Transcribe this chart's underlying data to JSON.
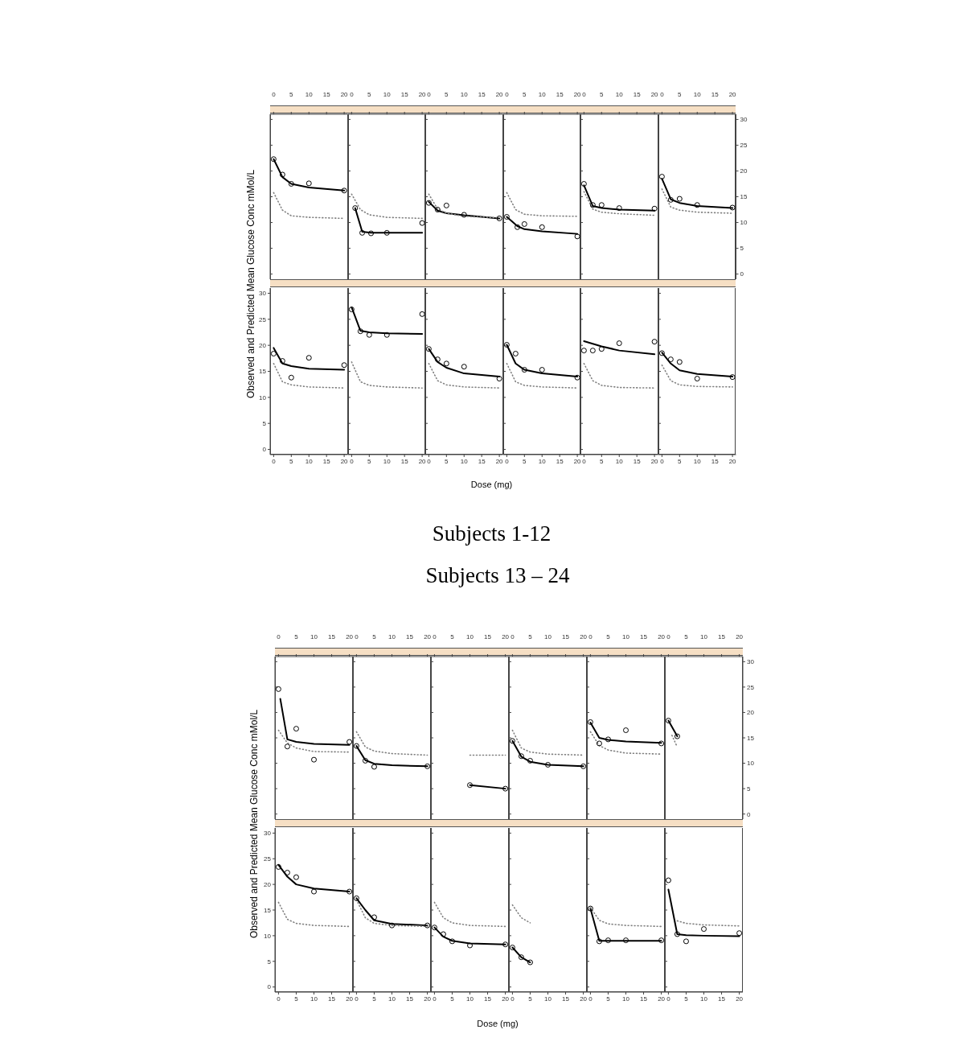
{
  "chart_data": [
    {
      "type": "line",
      "xlim": [
        -1,
        21
      ],
      "ylim": [
        -1,
        31
      ],
      "xticks": [
        0,
        5,
        10,
        15,
        20
      ],
      "yticks": [
        0,
        5,
        10,
        15,
        20,
        25,
        30
      ],
      "tick_labels": "x",
      "series": [
        {
          "type": "scatter",
          "marker": "circle",
          "color": "#000000",
          "x": [
            0,
            2.5,
            5,
            10,
            20
          ],
          "values": [
            22.3,
            19.3,
            17.5,
            17.6,
            16.2
          ]
        },
        {
          "marker": "none",
          "line_style": "solid",
          "color": "#000000",
          "x": [
            0,
            2.5,
            5,
            10,
            20
          ],
          "values": [
            22.3,
            18.8,
            17.5,
            16.8,
            16.2
          ]
        },
        {
          "marker": "none",
          "line_style": "dotted",
          "color": "#808080",
          "x": [
            0,
            2.5,
            5,
            10,
            20
          ],
          "values": [
            15.8,
            12.4,
            11.3,
            11,
            10.8
          ]
        }
      ]
    },
    {
      "type": "line",
      "xlim": [
        -1,
        21
      ],
      "ylim": [
        -1,
        31
      ],
      "xticks": [
        0,
        5,
        10,
        15,
        20
      ],
      "yticks": [
        0,
        5,
        10,
        15,
        20,
        25,
        30
      ],
      "tick_labels": "x",
      "series": [
        {
          "type": "scatter",
          "marker": "circle",
          "color": "#000000",
          "x": [
            1,
            3,
            5.5,
            10,
            20
          ],
          "values": [
            12.8,
            8,
            7.9,
            8,
            9.9
          ]
        },
        {
          "marker": "none",
          "line_style": "solid",
          "color": "#000000",
          "x": [
            1,
            3,
            5.5,
            10,
            20
          ],
          "values": [
            12.8,
            8.2,
            8,
            8,
            8
          ]
        },
        {
          "marker": "none",
          "line_style": "dotted",
          "color": "#808080",
          "x": [
            0,
            2.5,
            5,
            10,
            20
          ],
          "values": [
            15.5,
            12.5,
            11.5,
            11,
            10.8
          ]
        }
      ]
    },
    {
      "type": "line",
      "xlim": [
        -1,
        21
      ],
      "ylim": [
        -1,
        31
      ],
      "xticks": [
        0,
        5,
        10,
        15,
        20
      ],
      "yticks": [
        0,
        5,
        10,
        15,
        20,
        25,
        30
      ],
      "tick_labels": "x",
      "series": [
        {
          "type": "scatter",
          "marker": "circle",
          "color": "#000000",
          "x": [
            0,
            2.5,
            5,
            10,
            20
          ],
          "values": [
            13.8,
            12.5,
            13.3,
            11.5,
            10.8
          ]
        },
        {
          "marker": "none",
          "line_style": "solid",
          "color": "#000000",
          "x": [
            0,
            2.5,
            5,
            10,
            20
          ],
          "values": [
            14,
            12.3,
            11.8,
            11.4,
            10.8
          ]
        },
        {
          "marker": "none",
          "line_style": "dotted",
          "color": "#808080",
          "x": [
            0,
            2.5,
            5,
            10,
            20
          ],
          "values": [
            15.5,
            12.6,
            11.8,
            11.2,
            10.9
          ]
        }
      ]
    },
    {
      "type": "line",
      "xlim": [
        -1,
        21
      ],
      "ylim": [
        -1,
        31
      ],
      "xticks": [
        0,
        5,
        10,
        15,
        20
      ],
      "yticks": [
        0,
        5,
        10,
        15,
        20,
        25,
        30
      ],
      "tick_labels": "x",
      "series": [
        {
          "type": "scatter",
          "marker": "circle",
          "color": "#000000",
          "x": [
            0,
            3,
            5,
            10,
            20
          ],
          "values": [
            11.1,
            9.1,
            9.7,
            9.1,
            7.3
          ]
        },
        {
          "marker": "none",
          "line_style": "solid",
          "color": "#000000",
          "x": [
            0,
            3,
            5,
            10,
            20
          ],
          "values": [
            11.1,
            9.3,
            8.7,
            8.3,
            7.8
          ]
        },
        {
          "marker": "none",
          "line_style": "dotted",
          "color": "#808080",
          "x": [
            0,
            2.5,
            5,
            10,
            20
          ],
          "values": [
            15.8,
            12.5,
            11.6,
            11.3,
            11.2
          ]
        }
      ]
    },
    {
      "type": "line",
      "xlim": [
        -1,
        21
      ],
      "ylim": [
        -1,
        31
      ],
      "xticks": [
        0,
        5,
        10,
        15,
        20
      ],
      "yticks": [
        0,
        5,
        10,
        15,
        20,
        25,
        30
      ],
      "tick_labels": "x",
      "series": [
        {
          "type": "scatter",
          "marker": "circle",
          "color": "#000000",
          "x": [
            0,
            2.5,
            5,
            10,
            20
          ],
          "values": [
            17.5,
            13.4,
            13.4,
            12.8,
            12.7
          ]
        },
        {
          "marker": "none",
          "line_style": "solid",
          "color": "#000000",
          "x": [
            0,
            2.5,
            5,
            10,
            20
          ],
          "values": [
            17.2,
            13.2,
            12.8,
            12.5,
            12.3
          ]
        },
        {
          "marker": "none",
          "line_style": "dotted",
          "color": "#808080",
          "x": [
            0,
            2.5,
            5,
            10,
            20
          ],
          "values": [
            16,
            12.6,
            12,
            11.7,
            11.4
          ]
        }
      ]
    },
    {
      "type": "line",
      "xlim": [
        -1,
        21
      ],
      "ylim": [
        -1,
        31
      ],
      "xticks": [
        0,
        5,
        10,
        15,
        20
      ],
      "yticks": [
        0,
        5,
        10,
        15,
        20,
        25,
        30
      ],
      "series": [
        {
          "type": "scatter",
          "marker": "circle",
          "color": "#000000",
          "x": [
            0,
            2.5,
            5,
            10,
            20
          ],
          "values": [
            18.9,
            14.4,
            14.6,
            13.4,
            12.9
          ]
        },
        {
          "marker": "none",
          "line_style": "solid",
          "color": "#000000",
          "x": [
            0,
            2.5,
            5,
            10,
            20
          ],
          "values": [
            18.5,
            14.5,
            13.8,
            13.2,
            12.8
          ]
        },
        {
          "marker": "none",
          "line_style": "dotted",
          "color": "#808080",
          "x": [
            0,
            2.5,
            5,
            10,
            20
          ],
          "values": [
            16.5,
            13,
            12.4,
            12,
            11.8
          ]
        }
      ]
    },
    {
      "type": "line",
      "ylabel": "Observed and Predicted Mean Glucose Conc mMol/L",
      "xlim": [
        -1,
        21
      ],
      "ylim": [
        -1,
        31
      ],
      "xticks": [
        0,
        5,
        10,
        15,
        20
      ],
      "yticks": [
        0,
        5,
        10,
        15,
        20,
        25,
        30
      ],
      "series": [
        {
          "type": "scatter",
          "marker": "circle",
          "color": "#000000",
          "x": [
            0,
            2.5,
            5,
            10,
            20
          ],
          "values": [
            18.4,
            17,
            13.8,
            17.6,
            16.2
          ]
        },
        {
          "marker": "none",
          "line_style": "solid",
          "color": "#000000",
          "x": [
            0,
            2.5,
            5,
            10,
            20
          ],
          "values": [
            19.5,
            16.5,
            16,
            15.5,
            15.3
          ]
        },
        {
          "marker": "none",
          "line_style": "dotted",
          "color": "#808080",
          "x": [
            0,
            2.5,
            5,
            10,
            20
          ],
          "values": [
            16.5,
            13,
            12.4,
            12,
            11.8
          ]
        }
      ]
    },
    {
      "type": "line",
      "xlim": [
        -1,
        21
      ],
      "ylim": [
        -1,
        31
      ],
      "xticks": [
        0,
        5,
        10,
        15,
        20
      ],
      "yticks": [
        0,
        5,
        10,
        15,
        20,
        25,
        30
      ],
      "tick_labels": "x",
      "series": [
        {
          "type": "scatter",
          "marker": "circle",
          "color": "#000000",
          "x": [
            0,
            2.5,
            5,
            10,
            20
          ],
          "values": [
            26.9,
            22.7,
            22,
            22,
            26
          ]
        },
        {
          "marker": "none",
          "line_style": "solid",
          "color": "#000000",
          "x": [
            0,
            2.5,
            5,
            10,
            20
          ],
          "values": [
            27.3,
            22.8,
            22.5,
            22.3,
            22.2
          ]
        },
        {
          "marker": "none",
          "line_style": "dotted",
          "color": "#808080",
          "x": [
            0,
            2.5,
            5,
            10,
            20
          ],
          "values": [
            16.8,
            13,
            12.3,
            12,
            11.8
          ]
        }
      ]
    },
    {
      "type": "line",
      "title": "Subjects 1-12",
      "xlabel": "Dose (mg)",
      "xlim": [
        -1,
        21
      ],
      "ylim": [
        -1,
        31
      ],
      "xticks": [
        0,
        5,
        10,
        15,
        20
      ],
      "yticks": [
        0,
        5,
        10,
        15,
        20,
        25,
        30
      ],
      "tick_labels": "x",
      "series": [
        {
          "type": "scatter",
          "marker": "circle",
          "color": "#000000",
          "x": [
            0,
            2.5,
            5,
            10,
            20
          ],
          "values": [
            19.3,
            17.3,
            16.5,
            15.9,
            13.6
          ]
        },
        {
          "marker": "none",
          "line_style": "solid",
          "color": "#000000",
          "x": [
            0,
            2.5,
            5,
            10,
            20
          ],
          "values": [
            19.3,
            16.8,
            15.7,
            14.6,
            14
          ]
        },
        {
          "marker": "none",
          "line_style": "dotted",
          "color": "#808080",
          "x": [
            0,
            2.5,
            5,
            10,
            20
          ],
          "values": [
            16.5,
            13.2,
            12.4,
            12,
            11.8
          ]
        }
      ]
    },
    {
      "type": "line",
      "xlim": [
        -1,
        21
      ],
      "ylim": [
        -1,
        31
      ],
      "xticks": [
        0,
        5,
        10,
        15,
        20
      ],
      "yticks": [
        0,
        5,
        10,
        15,
        20,
        25,
        30
      ],
      "tick_labels": "x",
      "series": [
        {
          "type": "scatter",
          "marker": "circle",
          "color": "#000000",
          "x": [
            0,
            2.5,
            5,
            10,
            20
          ],
          "values": [
            20.1,
            18.4,
            15.3,
            15.3,
            13.8
          ]
        },
        {
          "marker": "none",
          "line_style": "solid",
          "color": "#000000",
          "x": [
            0,
            2.5,
            5,
            10,
            20
          ],
          "values": [
            20.1,
            16.5,
            15.3,
            14.6,
            14
          ]
        },
        {
          "marker": "none",
          "line_style": "dotted",
          "color": "#808080",
          "x": [
            0,
            2.5,
            5,
            10,
            20
          ],
          "values": [
            16.5,
            13,
            12.3,
            12,
            11.8
          ]
        }
      ]
    },
    {
      "type": "line",
      "xlim": [
        -1,
        21
      ],
      "ylim": [
        -1,
        31
      ],
      "xticks": [
        0,
        5,
        10,
        15,
        20
      ],
      "yticks": [
        0,
        5,
        10,
        15,
        20,
        25,
        30
      ],
      "tick_labels": "x",
      "series": [
        {
          "type": "scatter",
          "marker": "circle",
          "color": "#000000",
          "x": [
            0,
            2.5,
            5,
            10,
            20
          ],
          "values": [
            19,
            19,
            19.3,
            20.4,
            20.7
          ]
        },
        {
          "marker": "none",
          "line_style": "solid",
          "color": "#000000",
          "x": [
            0,
            2.5,
            5,
            10,
            20
          ],
          "values": [
            20.8,
            20.3,
            19.8,
            19,
            18.3
          ]
        },
        {
          "marker": "none",
          "line_style": "dotted",
          "color": "#808080",
          "x": [
            0,
            2.5,
            5,
            10,
            20
          ],
          "values": [
            16.5,
            13.2,
            12.3,
            11.9,
            11.8
          ]
        }
      ]
    },
    {
      "type": "line",
      "xlim": [
        -1,
        21
      ],
      "ylim": [
        -1,
        31
      ],
      "xticks": [
        0,
        5,
        10,
        15,
        20
      ],
      "yticks": [
        0,
        5,
        10,
        15,
        20,
        25,
        30
      ],
      "tick_labels": "x",
      "series": [
        {
          "type": "scatter",
          "marker": "circle",
          "color": "#000000",
          "x": [
            0,
            2.5,
            5,
            10,
            20
          ],
          "values": [
            18.5,
            17.3,
            16.8,
            13.6,
            13.9
          ]
        },
        {
          "marker": "none",
          "line_style": "solid",
          "color": "#000000",
          "x": [
            0,
            2.5,
            5,
            10,
            20
          ],
          "values": [
            18.6,
            16.5,
            15.2,
            14.5,
            14
          ]
        },
        {
          "marker": "none",
          "line_style": "dotted",
          "color": "#808080",
          "x": [
            0,
            2.5,
            5,
            10,
            20
          ],
          "values": [
            16.2,
            13.2,
            12.4,
            12.1,
            12
          ]
        }
      ]
    },
    {
      "type": "line",
      "xlim": [
        -1,
        21
      ],
      "ylim": [
        -1,
        31
      ],
      "xticks": [
        0,
        5,
        10,
        15,
        20
      ],
      "yticks": [
        0,
        5,
        10,
        15,
        20,
        25,
        30
      ],
      "tick_labels": "x",
      "series": [
        {
          "type": "scatter",
          "marker": "circle",
          "color": "#000000",
          "x": [
            0,
            2.5,
            5,
            10,
            20
          ],
          "values": [
            24.6,
            13.3,
            16.8,
            10.7,
            14.2
          ]
        },
        {
          "marker": "none",
          "line_style": "solid",
          "color": "#000000",
          "x": [
            0.5,
            2.5,
            5,
            10,
            20
          ],
          "values": [
            22.7,
            14.7,
            14.2,
            13.8,
            13.6
          ]
        },
        {
          "marker": "none",
          "line_style": "dotted",
          "color": "#808080",
          "x": [
            0,
            2.5,
            5,
            10,
            20
          ],
          "values": [
            16.5,
            14,
            13,
            12.3,
            12.2
          ]
        }
      ]
    },
    {
      "type": "line",
      "xlim": [
        -1,
        21
      ],
      "ylim": [
        -1,
        31
      ],
      "xticks": [
        0,
        5,
        10,
        15,
        20
      ],
      "yticks": [
        0,
        5,
        10,
        15,
        20,
        25,
        30
      ],
      "tick_labels": "x",
      "series": [
        {
          "type": "scatter",
          "marker": "circle",
          "color": "#000000",
          "x": [
            0,
            2.5,
            5,
            20
          ],
          "values": [
            13.4,
            10.5,
            9.3,
            9.4
          ]
        },
        {
          "marker": "none",
          "line_style": "solid",
          "color": "#000000",
          "x": [
            0,
            2.5,
            5,
            10,
            20
          ],
          "values": [
            13.4,
            10.6,
            9.9,
            9.6,
            9.4
          ]
        },
        {
          "marker": "none",
          "line_style": "dotted",
          "color": "#808080",
          "x": [
            0,
            2.5,
            5,
            10,
            20
          ],
          "values": [
            16.2,
            13.2,
            12.4,
            11.9,
            11.6
          ]
        }
      ]
    },
    {
      "type": "line",
      "title": "Subjects 13 – 24",
      "xlim": [
        -1,
        21
      ],
      "ylim": [
        -1,
        31
      ],
      "xticks": [
        0,
        5,
        10,
        15,
        20
      ],
      "yticks": [
        0,
        5,
        10,
        15,
        20,
        25,
        30
      ],
      "tick_labels": "x",
      "series": [
        {
          "type": "scatter",
          "marker": "circle",
          "color": "#000000",
          "x": [
            10,
            20
          ],
          "values": [
            5.7,
            5
          ]
        },
        {
          "marker": "none",
          "line_style": "solid",
          "color": "#000000",
          "x": [
            10,
            20
          ],
          "values": [
            5.7,
            5
          ]
        },
        {
          "marker": "none",
          "line_style": "dotted",
          "color": "#808080",
          "x": [
            10,
            20
          ],
          "values": [
            11.6,
            11.6
          ]
        }
      ]
    },
    {
      "type": "line",
      "xlim": [
        -1,
        21
      ],
      "ylim": [
        -1,
        31
      ],
      "xticks": [
        0,
        5,
        10,
        15,
        20
      ],
      "yticks": [
        0,
        5,
        10,
        15,
        20,
        25,
        30
      ],
      "tick_labels": "x",
      "series": [
        {
          "type": "scatter",
          "marker": "circle",
          "color": "#000000",
          "x": [
            0,
            2.5,
            5,
            10,
            20
          ],
          "values": [
            14.4,
            11.4,
            10.5,
            9.7,
            9.4
          ]
        },
        {
          "marker": "none",
          "line_style": "solid",
          "color": "#000000",
          "x": [
            0,
            2.5,
            5,
            10,
            20
          ],
          "values": [
            14.4,
            11.3,
            10.3,
            9.7,
            9.4
          ]
        },
        {
          "marker": "none",
          "line_style": "dotted",
          "color": "#808080",
          "x": [
            0,
            2.5,
            5,
            10,
            20
          ],
          "values": [
            16.5,
            13,
            12.2,
            11.8,
            11.6
          ]
        }
      ]
    },
    {
      "type": "line",
      "xlim": [
        -1,
        21
      ],
      "ylim": [
        -1,
        31
      ],
      "xticks": [
        0,
        5,
        10,
        15,
        20
      ],
      "yticks": [
        0,
        5,
        10,
        15,
        20,
        25,
        30
      ],
      "tick_labels": "x",
      "series": [
        {
          "type": "scatter",
          "marker": "circle",
          "color": "#000000",
          "x": [
            0,
            2.5,
            5,
            10,
            20
          ],
          "values": [
            18.1,
            13.9,
            14.7,
            16.5,
            13.9
          ]
        },
        {
          "marker": "none",
          "line_style": "solid",
          "color": "#000000",
          "x": [
            0,
            2.5,
            5,
            10,
            20
          ],
          "values": [
            18,
            15,
            14.6,
            14.3,
            14
          ]
        },
        {
          "marker": "none",
          "line_style": "dotted",
          "color": "#808080",
          "x": [
            0,
            2.5,
            5,
            10,
            20
          ],
          "values": [
            16.2,
            13.5,
            12.6,
            12,
            11.8
          ]
        }
      ]
    },
    {
      "type": "line",
      "xlim": [
        -1,
        21
      ],
      "ylim": [
        -1,
        31
      ],
      "xticks": [
        0,
        5,
        10,
        15,
        20
      ],
      "yticks": [
        0,
        5,
        10,
        15,
        20,
        25,
        30
      ],
      "series": [
        {
          "type": "scatter",
          "marker": "circle",
          "color": "#000000",
          "x": [
            0,
            2.5
          ],
          "values": [
            18.4,
            15.3
          ]
        },
        {
          "marker": "none",
          "line_style": "solid",
          "color": "#000000",
          "x": [
            0,
            2.5
          ],
          "values": [
            18.4,
            15.3
          ]
        },
        {
          "marker": "none",
          "line_style": "dotted",
          "color": "#808080",
          "x": [
            1,
            2.5
          ],
          "values": [
            15.5,
            13.2
          ]
        }
      ]
    },
    {
      "type": "line",
      "ylabel": "Observed and Predicted Mean Glucose Conc mMol/L",
      "xlim": [
        -1,
        21
      ],
      "ylim": [
        -1,
        31
      ],
      "xticks": [
        0,
        5,
        10,
        15,
        20
      ],
      "yticks": [
        0,
        5,
        10,
        15,
        20,
        25,
        30
      ],
      "series": [
        {
          "type": "scatter",
          "marker": "circle",
          "color": "#000000",
          "x": [
            0,
            2.5,
            5,
            10,
            20
          ],
          "values": [
            23.4,
            22.3,
            21.4,
            18.6,
            18.6
          ]
        },
        {
          "marker": "none",
          "line_style": "solid",
          "color": "#000000",
          "x": [
            0,
            2.5,
            5,
            10,
            20
          ],
          "values": [
            23.8,
            21.5,
            20,
            19.2,
            18.6
          ]
        },
        {
          "marker": "none",
          "line_style": "dotted",
          "color": "#808080",
          "x": [
            0,
            2.5,
            5,
            10,
            20
          ],
          "values": [
            16.5,
            13.2,
            12.4,
            12,
            11.8
          ]
        }
      ]
    },
    {
      "type": "line",
      "xlim": [
        -1,
        21
      ],
      "ylim": [
        -1,
        31
      ],
      "xticks": [
        0,
        5,
        10,
        15,
        20
      ],
      "yticks": [
        0,
        5,
        10,
        15,
        20,
        25,
        30
      ],
      "tick_labels": "x",
      "series": [
        {
          "type": "scatter",
          "marker": "circle",
          "color": "#000000",
          "x": [
            0,
            5,
            10,
            20
          ],
          "values": [
            17.3,
            13.6,
            12,
            12
          ]
        },
        {
          "marker": "none",
          "line_style": "solid",
          "color": "#000000",
          "x": [
            0,
            2.5,
            5,
            10,
            20
          ],
          "values": [
            17.3,
            15,
            13,
            12.3,
            12
          ]
        },
        {
          "marker": "none",
          "line_style": "dotted",
          "color": "#808080",
          "x": [
            0,
            2.5,
            5,
            10,
            20
          ],
          "values": [
            17,
            13.5,
            12.4,
            12,
            11.8
          ]
        }
      ]
    },
    {
      "type": "line",
      "xlabel": "Dose (mg)",
      "xlim": [
        -1,
        21
      ],
      "ylim": [
        -1,
        31
      ],
      "xticks": [
        0,
        5,
        10,
        15,
        20
      ],
      "yticks": [
        0,
        5,
        10,
        15,
        20,
        25,
        30
      ],
      "tick_labels": "x",
      "series": [
        {
          "type": "scatter",
          "marker": "circle",
          "color": "#000000",
          "x": [
            0,
            2.5,
            5,
            10,
            20
          ],
          "values": [
            11.6,
            10.3,
            8.9,
            8.1,
            8.3
          ]
        },
        {
          "marker": "none",
          "line_style": "solid",
          "color": "#000000",
          "x": [
            0,
            2.5,
            5,
            10,
            20
          ],
          "values": [
            11.6,
            9.8,
            9,
            8.5,
            8.3
          ]
        },
        {
          "marker": "none",
          "line_style": "dotted",
          "color": "#808080",
          "x": [
            0,
            2.5,
            5,
            10,
            20
          ],
          "values": [
            16.5,
            13.5,
            12.5,
            12,
            11.8
          ]
        }
      ]
    },
    {
      "type": "line",
      "xlim": [
        -1,
        21
      ],
      "ylim": [
        -1,
        31
      ],
      "xticks": [
        0,
        5,
        10,
        15,
        20
      ],
      "yticks": [
        0,
        5,
        10,
        15,
        20,
        25,
        30
      ],
      "tick_labels": "x",
      "series": [
        {
          "type": "scatter",
          "marker": "circle",
          "color": "#000000",
          "x": [
            0,
            2.5,
            5
          ],
          "values": [
            7.7,
            5.8,
            4.8
          ]
        },
        {
          "marker": "none",
          "line_style": "solid",
          "color": "#000000",
          "x": [
            0,
            2.5,
            5
          ],
          "values": [
            7.7,
            5.8,
            4.8
          ]
        },
        {
          "marker": "none",
          "line_style": "dotted",
          "color": "#808080",
          "x": [
            0,
            2.5,
            5
          ],
          "values": [
            16,
            13.5,
            12.5
          ]
        }
      ]
    },
    {
      "type": "line",
      "xlim": [
        -1,
        21
      ],
      "ylim": [
        -1,
        31
      ],
      "xticks": [
        0,
        5,
        10,
        15,
        20
      ],
      "yticks": [
        0,
        5,
        10,
        15,
        20,
        25,
        30
      ],
      "tick_labels": "x",
      "series": [
        {
          "type": "scatter",
          "marker": "circle",
          "color": "#000000",
          "x": [
            0,
            2.5,
            5,
            10,
            20
          ],
          "values": [
            15.3,
            8.9,
            9.1,
            9.1,
            9.1
          ]
        },
        {
          "marker": "none",
          "line_style": "solid",
          "color": "#000000",
          "x": [
            0,
            2.5,
            5,
            10,
            20
          ],
          "values": [
            15.3,
            9,
            9,
            9,
            9
          ]
        },
        {
          "marker": "none",
          "line_style": "dotted",
          "color": "#808080",
          "x": [
            0,
            2.5,
            5,
            10,
            20
          ],
          "values": [
            15.5,
            13,
            12.3,
            12,
            11.8
          ]
        }
      ]
    },
    {
      "type": "line",
      "xlim": [
        -1,
        21
      ],
      "ylim": [
        -1,
        31
      ],
      "xticks": [
        0,
        5,
        10,
        15,
        20
      ],
      "yticks": [
        0,
        5,
        10,
        15,
        20,
        25,
        30
      ],
      "tick_labels": "x",
      "series": [
        {
          "type": "scatter",
          "marker": "circle",
          "color": "#000000",
          "x": [
            0,
            2.5,
            5,
            10,
            20
          ],
          "values": [
            20.8,
            10.3,
            8.9,
            11.3,
            10.5
          ]
        },
        {
          "marker": "none",
          "line_style": "solid",
          "color": "#000000",
          "x": [
            0,
            2.5,
            5,
            10,
            20
          ],
          "values": [
            19,
            10.3,
            10.1,
            10,
            9.9
          ]
        },
        {
          "marker": "none",
          "line_style": "dotted",
          "color": "#808080",
          "x": [
            2.5,
            5,
            10,
            20
          ],
          "values": [
            12.9,
            12.4,
            12.1,
            11.9
          ]
        }
      ]
    }
  ]
}
